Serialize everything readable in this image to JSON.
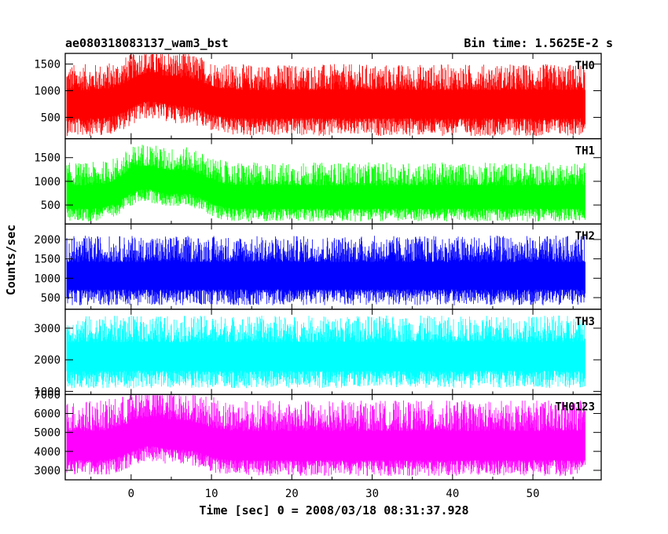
{
  "header": {
    "left_title": "ae080318083137_wam3_bst",
    "right_title": "Bin time: 1.5625E-2 s"
  },
  "axes": {
    "ylabel": "Counts/sec",
    "xlabel": "Time [sec] 0 = 2008/03/18 08:31:37.928"
  },
  "chart_data": {
    "type": "line",
    "title": "ae080318083137_wam3_bst",
    "subtitle": "Bin time: 1.5625E-2 s",
    "xlabel": "Time [sec] 0 = 2008/03/18 08:31:37.928",
    "ylabel": "Counts/sec",
    "xlim": [
      -8.2,
      58.5
    ],
    "x_ticks": [
      0,
      10,
      20,
      30,
      40,
      50
    ],
    "x_tick_labels": [
      "0",
      "10",
      "20",
      "30",
      "40",
      "50"
    ],
    "data_x_range": [
      -8,
      56.5
    ],
    "grid": false,
    "panels": [
      {
        "name": "TH0",
        "color": "#ff0000",
        "ylim": [
          100,
          1700
        ],
        "y_ticks": [
          500,
          1000,
          1500
        ],
        "y_tick_labels": [
          "500",
          "1000",
          "1500"
        ],
        "mean_level": 750,
        "noise_low": 150,
        "noise_high": 1500,
        "burst_bumps": [
          {
            "t": 2,
            "level": 1050
          },
          {
            "t": 7,
            "level": 950
          }
        ]
      },
      {
        "name": "TH1",
        "color": "#00ff00",
        "ylim": [
          100,
          1900
        ],
        "y_ticks": [
          500,
          1000,
          1500
        ],
        "y_tick_labels": [
          "500",
          "1000",
          "1500"
        ],
        "mean_level": 650,
        "noise_low": 150,
        "noise_high": 1400,
        "burst_bumps": [
          {
            "t": 1.5,
            "level": 1050
          },
          {
            "t": 7,
            "level": 950
          }
        ]
      },
      {
        "name": "TH2",
        "color": "#0000ff",
        "ylim": [
          200,
          2400
        ],
        "y_ticks": [
          500,
          1000,
          1500,
          2000
        ],
        "y_tick_labels": [
          "500",
          "1000",
          "1500",
          "2000"
        ],
        "mean_level": 1050,
        "noise_low": 300,
        "noise_high": 2100,
        "burst_bumps": []
      },
      {
        "name": "TH3",
        "color": "#00ffff",
        "ylim": [
          900,
          3600
        ],
        "y_ticks": [
          1000,
          2000,
          3000
        ],
        "y_tick_labels": [
          "1000",
          "2000",
          "3000"
        ],
        "mean_level": 2100,
        "noise_low": 1100,
        "noise_high": 3400,
        "burst_bumps": []
      },
      {
        "name": "TH0123",
        "color": "#ff00ff",
        "ylim": [
          2500,
          7000
        ],
        "y_ticks": [
          3000,
          4000,
          5000,
          6000,
          7000
        ],
        "y_tick_labels": [
          "3000",
          "4000",
          "5000",
          "6000",
          "7000"
        ],
        "mean_level": 4200,
        "noise_low": 2700,
        "noise_high": 6700,
        "burst_bumps": [
          {
            "t": 2,
            "level": 4900
          },
          {
            "t": 7,
            "level": 4700
          }
        ]
      }
    ]
  }
}
